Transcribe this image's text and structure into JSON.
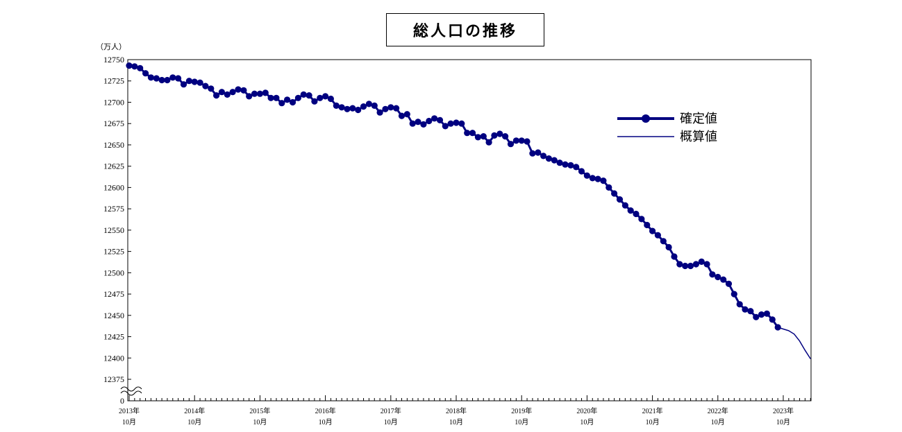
{
  "title": "総人口の推移",
  "chart_data": {
    "type": "line",
    "title": "総人口の推移",
    "ylabel": "（万人）",
    "ylim": [
      12375,
      12750
    ],
    "y_ticks": [
      "12750",
      "12725",
      "12700",
      "12675",
      "12650",
      "12625",
      "12600",
      "12575",
      "12550",
      "12525",
      "12500",
      "12475",
      "12450",
      "12425",
      "12400",
      "12375",
      "0"
    ],
    "y_axis_break": true,
    "x_tick_labels": [
      {
        "year": "2013年",
        "month": "10月"
      },
      {
        "year": "2014年",
        "month": "10月"
      },
      {
        "year": "2015年",
        "month": "10月"
      },
      {
        "year": "2016年",
        "month": "10月"
      },
      {
        "year": "2017年",
        "month": "10月"
      },
      {
        "year": "2018年",
        "month": "10月"
      },
      {
        "year": "2019年",
        "month": "10月"
      },
      {
        "year": "2020年",
        "month": "10月"
      },
      {
        "year": "2021年",
        "month": "10月"
      },
      {
        "year": "2022年",
        "month": "10月"
      },
      {
        "year": "2023年",
        "month": "10月"
      }
    ],
    "series": [
      {
        "name": "確定値",
        "marker": "circle",
        "values": [
          12743,
          12742,
          12740,
          12734,
          12729,
          12728,
          12726,
          12726,
          12729,
          12728,
          12721,
          12725,
          12724,
          12723,
          12719,
          12716,
          12708,
          12712,
          12709,
          12712,
          12715,
          12714,
          12707,
          12710,
          12710,
          12711,
          12705,
          12705,
          12699,
          12703,
          12700,
          12705,
          12709,
          12708,
          12701,
          12705,
          12707,
          12704,
          12696,
          12694,
          12692,
          12693,
          12691,
          12695,
          12698,
          12696,
          12688,
          12692,
          12694,
          12693,
          12684,
          12686,
          12675,
          12677,
          12674,
          12678,
          12681,
          12679,
          12672,
          12675,
          12676,
          12675,
          12664,
          12664,
          12659,
          12660,
          12653,
          12661,
          12663,
          12660,
          12651,
          12655,
          12655,
          12654,
          12640,
          12641,
          12637,
          12634,
          12632,
          12629,
          12627,
          12626,
          12624,
          12619,
          12614,
          12611,
          12610,
          12608,
          12600,
          12593,
          12586,
          12579,
          12573,
          12569,
          12563,
          12556,
          12549,
          12544,
          12537,
          12530,
          12519,
          12510,
          12508,
          12508,
          12510,
          12513,
          12510,
          12498,
          12495,
          12492,
          12487,
          12475,
          12463,
          12457,
          12455,
          12448,
          12451,
          12452,
          12445,
          12436
        ]
      },
      {
        "name": "概算値",
        "marker": "none",
        "values": [
          12436,
          12434,
          12432,
          12428,
          12420,
          12409,
          12399
        ]
      }
    ],
    "series_start_month_index": [
      0,
      119
    ],
    "legend_position": "upper-right",
    "grid": false,
    "color": "#000080"
  }
}
